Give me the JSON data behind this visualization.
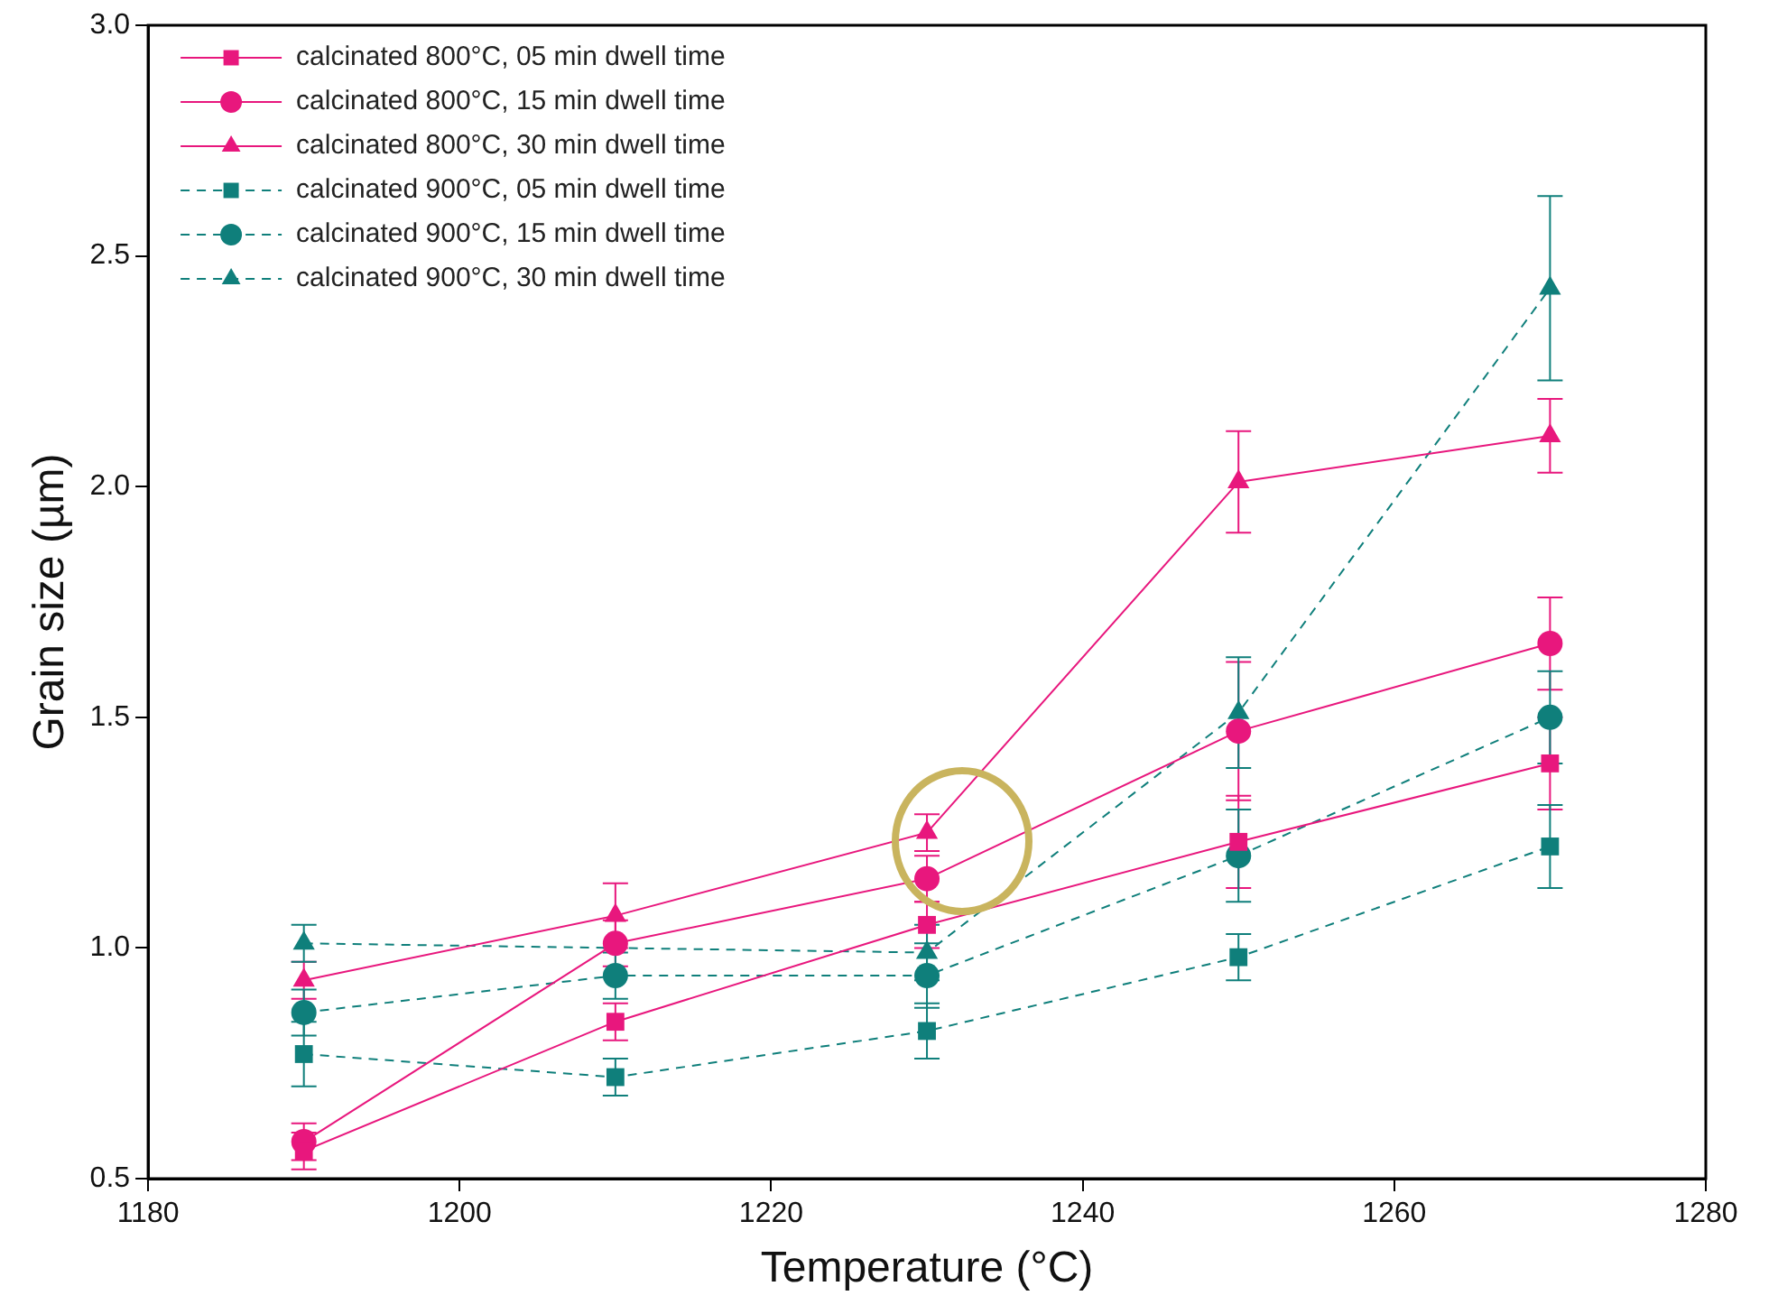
{
  "chart_data": {
    "type": "line",
    "xlabel": "Temperature (°C)",
    "ylabel": "Grain size (µm)",
    "x": [
      1190,
      1210,
      1230,
      1250,
      1270
    ],
    "xlim": [
      1180,
      1280
    ],
    "xticks": [
      1180,
      1200,
      1220,
      1240,
      1260,
      1280
    ],
    "ylim": [
      0.5,
      3.0
    ],
    "yticks": [
      {
        "value": 0.5,
        "label": "0.5"
      },
      {
        "value": 1.0,
        "label": "1.0"
      },
      {
        "value": 1.5,
        "label": "1.5"
      },
      {
        "value": 2.0,
        "label": "2.0"
      },
      {
        "value": 2.5,
        "label": "2.5"
      },
      {
        "value": 3.0,
        "label": "3.0"
      }
    ],
    "grid": false,
    "legend": "top left",
    "series": [
      {
        "name": "calcinated 800°C, 05 min dwell time",
        "color": "#e8177d",
        "marker": "square",
        "line_style": "solid",
        "values": [
          0.56,
          0.84,
          1.05,
          1.23,
          1.4
        ],
        "errors": [
          0.04,
          0.04,
          0.05,
          0.1,
          0.1
        ]
      },
      {
        "name": "calcinated 800°C, 15 min dwell time",
        "color": "#e8177d",
        "marker": "circle",
        "line_style": "solid",
        "values": [
          0.58,
          1.01,
          1.15,
          1.47,
          1.66
        ],
        "errors": [
          0.04,
          0.05,
          0.05,
          0.15,
          0.1
        ]
      },
      {
        "name": "calcinated 800°C, 30 min dwell time",
        "color": "#e8177d",
        "marker": "triangle",
        "line_style": "solid",
        "values": [
          0.93,
          1.07,
          1.25,
          2.01,
          2.11
        ],
        "errors": [
          0.04,
          0.07,
          0.04,
          0.11,
          0.08
        ]
      },
      {
        "name": "calcinated 900°C, 05 min dwell time",
        "color": "#0f7f7b",
        "marker": "square",
        "line_style": "dashed",
        "values": [
          0.77,
          0.72,
          0.82,
          0.98,
          1.22
        ],
        "errors": [
          0.07,
          0.04,
          0.06,
          0.05,
          0.09
        ]
      },
      {
        "name": "calcinated 900°C, 15 min dwell time",
        "color": "#0f7f7b",
        "marker": "circle",
        "line_style": "dashed",
        "values": [
          0.86,
          0.94,
          0.94,
          1.2,
          1.5
        ],
        "errors": [
          0.05,
          0.05,
          0.07,
          0.1,
          0.1
        ]
      },
      {
        "name": "calcinated 900°C, 30 min dwell time",
        "color": "#0f7f7b",
        "marker": "triangle",
        "line_style": "dashed",
        "values": [
          1.01,
          null,
          0.99,
          1.51,
          2.43
        ],
        "errors": [
          0.04,
          null,
          0.06,
          0.12,
          0.2
        ]
      }
    ]
  }
}
